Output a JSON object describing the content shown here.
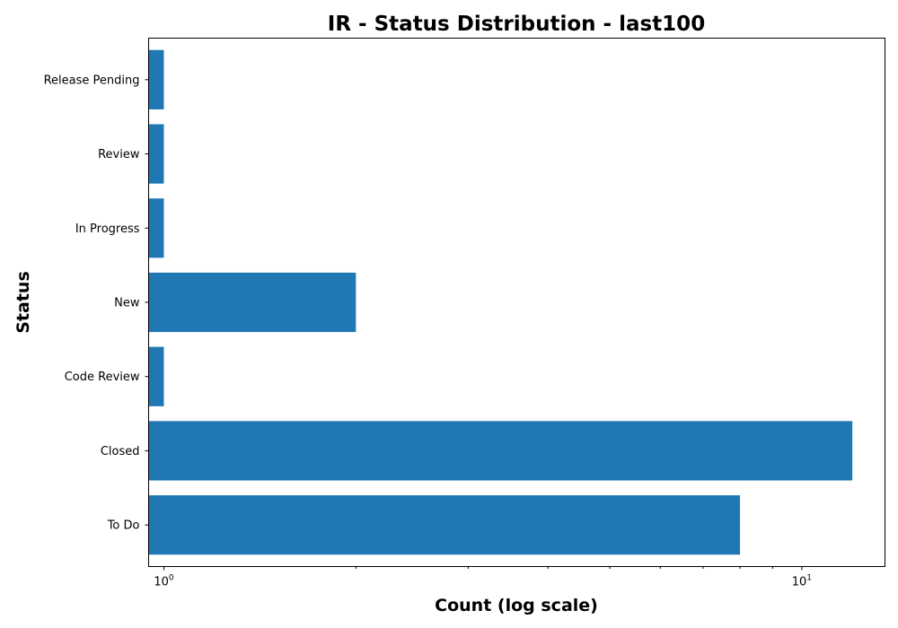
{
  "chart_data": {
    "type": "bar",
    "orientation": "horizontal",
    "title": "IR - Status Distribution - last100",
    "xlabel": "Count (log scale)",
    "ylabel": "Status",
    "xscale": "log",
    "xlim": [
      0.9465,
      13.5
    ],
    "categories": [
      "To Do",
      "Closed",
      "Code Review",
      "New",
      "In Progress",
      "Review",
      "Release Pending"
    ],
    "values": [
      8,
      12,
      1,
      2,
      1,
      1,
      1
    ],
    "x_major_ticks": [
      1,
      10
    ],
    "x_major_tick_labels": [
      {
        "base": "10",
        "exp": "0"
      },
      {
        "base": "10",
        "exp": "1"
      }
    ],
    "bar_color": "#1f77b4",
    "grid": false,
    "legend": "none"
  }
}
